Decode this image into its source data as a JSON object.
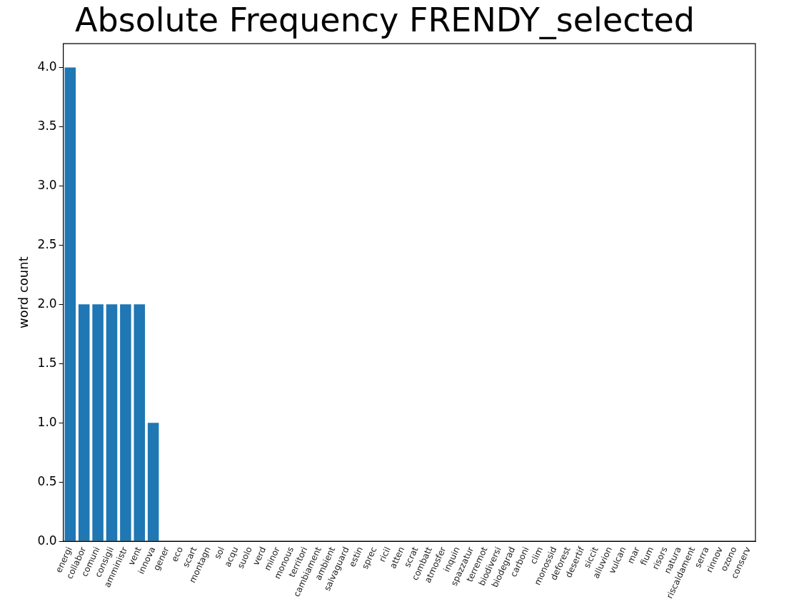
{
  "chart_data": {
    "type": "bar",
    "title": "Absolute Frequency FRENDY_selected",
    "ylabel": "word count",
    "categories": [
      "energi",
      "collabor",
      "comuni",
      "consigli",
      "amministr",
      "vent",
      "innova",
      "gener",
      "eco",
      "scart",
      "montagn",
      "sol",
      "acqu",
      "suolo",
      "verd",
      "minor",
      "monous",
      "territori",
      "cambiament",
      "ambient",
      "salvaguard",
      "estin",
      "sprec",
      "ricil",
      "atten",
      "scrat",
      "combatt",
      "atmosfer",
      "inquin",
      "spazzatur",
      "terremot",
      "biodiversi",
      "biodegrad",
      "carboni",
      "clim",
      "monossid",
      "deforest",
      "desertif",
      "siccit",
      "alluvion",
      "vulcan",
      "mar",
      "fium",
      "risors",
      "natura",
      "riscaldament",
      "serra",
      "rinnov",
      "ozono",
      "conserv"
    ],
    "values": [
      4,
      2,
      2,
      2,
      2,
      2,
      1,
      0,
      0,
      0,
      0,
      0,
      0,
      0,
      0,
      0,
      0,
      0,
      0,
      0,
      0,
      0,
      0,
      0,
      0,
      0,
      0,
      0,
      0,
      0,
      0,
      0,
      0,
      0,
      0,
      0,
      0,
      0,
      0,
      0,
      0,
      0,
      0,
      0,
      0,
      0,
      0,
      0,
      0,
      0
    ],
    "color": "#1f77b4",
    "ylim": [
      0,
      4.2
    ],
    "yticks": [
      {
        "value": 0,
        "label": "0.0"
      },
      {
        "value": 0.5,
        "label": "0.5"
      },
      {
        "value": 1,
        "label": "1.0"
      },
      {
        "value": 1.5,
        "label": "1.5"
      },
      {
        "value": 2,
        "label": "2.0"
      },
      {
        "value": 2.5,
        "label": "2.5"
      },
      {
        "value": 3,
        "label": "3.0"
      },
      {
        "value": 3.5,
        "label": "3.5"
      },
      {
        "value": 4,
        "label": "4.0"
      }
    ],
    "grid": false,
    "legend": false
  }
}
